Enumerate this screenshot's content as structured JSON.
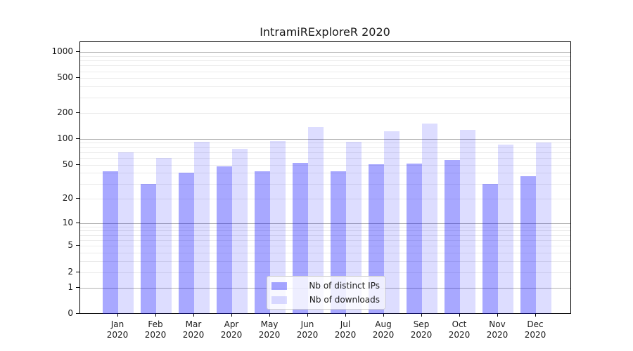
{
  "chart_data": {
    "type": "bar",
    "title": "IntramiRExploreR 2020",
    "categories": [
      "Jan",
      "Feb",
      "Mar",
      "Apr",
      "May",
      "Jun",
      "Jul",
      "Aug",
      "Sep",
      "Oct",
      "Nov",
      "Dec"
    ],
    "category_year": "2020",
    "series": [
      {
        "name": "Nb of distinct IPs",
        "color": "rgba(0,0,255,0.34)",
        "values": [
          42,
          30,
          40,
          48,
          42,
          53,
          42,
          51,
          52,
          57,
          30,
          37
        ]
      },
      {
        "name": "Nb of downloads",
        "color": "rgba(0,0,255,0.135)",
        "values": [
          70,
          60,
          92,
          77,
          94,
          136,
          92,
          122,
          150,
          126,
          86,
          90
        ]
      }
    ],
    "yscale": "log1p",
    "ylabel": "",
    "xlabel": "",
    "yticks": [
      0,
      1,
      2,
      5,
      10,
      20,
      50,
      100,
      200,
      500,
      1000
    ],
    "major_gridlines": [
      1,
      10,
      100,
      1000
    ],
    "minor_gridlines": [
      2,
      3,
      4,
      5,
      6,
      7,
      8,
      9,
      20,
      30,
      40,
      50,
      60,
      70,
      80,
      90,
      200,
      300,
      400,
      500,
      600,
      700,
      800,
      900
    ],
    "ylim": [
      0,
      1300
    ],
    "grid": "on",
    "legend_position": "lower center",
    "colors": {
      "bar_distinct_ips": "#a8a8ff",
      "bar_downloads": "#ddddff",
      "major_grid": "#b0b0b0",
      "minor_grid": "#ebebeb",
      "text": "#1a1a1a"
    }
  }
}
